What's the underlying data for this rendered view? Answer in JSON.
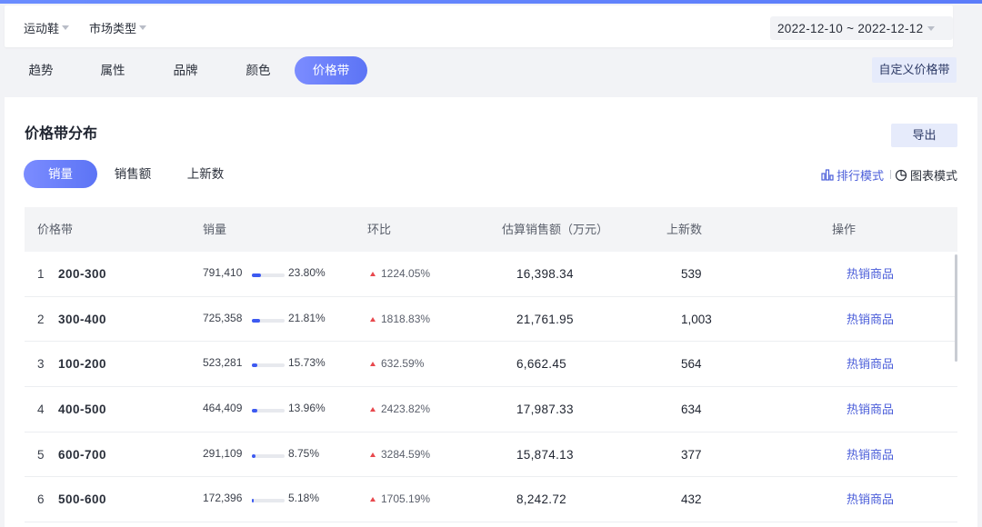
{
  "filters": {
    "category": "运动鞋",
    "market_type": "市场类型",
    "date_range": "2022-12-10 ~ 2022-12-12"
  },
  "tabs": [
    {
      "label": "趋势"
    },
    {
      "label": "属性"
    },
    {
      "label": "品牌"
    },
    {
      "label": "颜色"
    },
    {
      "label": "价格带",
      "active": true
    }
  ],
  "custom_price_band_label": "自定义价格带",
  "panel": {
    "title": "价格带分布",
    "export_label": "导出",
    "subtabs": [
      {
        "label": "销量",
        "active": true
      },
      {
        "label": "销售额"
      },
      {
        "label": "上新数"
      }
    ],
    "rank_mode_label": "排行模式",
    "chart_mode_label": "图表模式"
  },
  "colors": {
    "accent": "#5c74f5",
    "link": "#4a5dd9",
    "up_arrow": "#e8484d"
  },
  "table": {
    "headers": [
      "价格带",
      "销量",
      "环比",
      "估算销售额（万元）",
      "上新数",
      "操作"
    ],
    "rows": [
      {
        "index": "1",
        "range": "200-300",
        "sales": "791,410",
        "share": "23.80%",
        "share_value": 23.8,
        "ratio": "1224.05%",
        "amount": "16,398.34",
        "new": "539",
        "op": "热销商品"
      },
      {
        "index": "2",
        "range": "300-400",
        "sales": "725,358",
        "share": "21.81%",
        "share_value": 21.81,
        "ratio": "1818.83%",
        "amount": "21,761.95",
        "new": "1,003",
        "op": "热销商品"
      },
      {
        "index": "3",
        "range": "100-200",
        "sales": "523,281",
        "share": "15.73%",
        "share_value": 15.73,
        "ratio": "632.59%",
        "amount": "6,662.45",
        "new": "564",
        "op": "热销商品"
      },
      {
        "index": "4",
        "range": "400-500",
        "sales": "464,409",
        "share": "13.96%",
        "share_value": 13.96,
        "ratio": "2423.82%",
        "amount": "17,987.33",
        "new": "634",
        "op": "热销商品"
      },
      {
        "index": "5",
        "range": "600-700",
        "sales": "291,109",
        "share": "8.75%",
        "share_value": 8.75,
        "ratio": "3284.59%",
        "amount": "15,874.13",
        "new": "377",
        "op": "热销商品"
      },
      {
        "index": "6",
        "range": "500-600",
        "sales": "172,396",
        "share": "5.18%",
        "share_value": 5.18,
        "ratio": "1705.19%",
        "amount": "8,242.72",
        "new": "432",
        "op": "热销商品"
      }
    ]
  }
}
